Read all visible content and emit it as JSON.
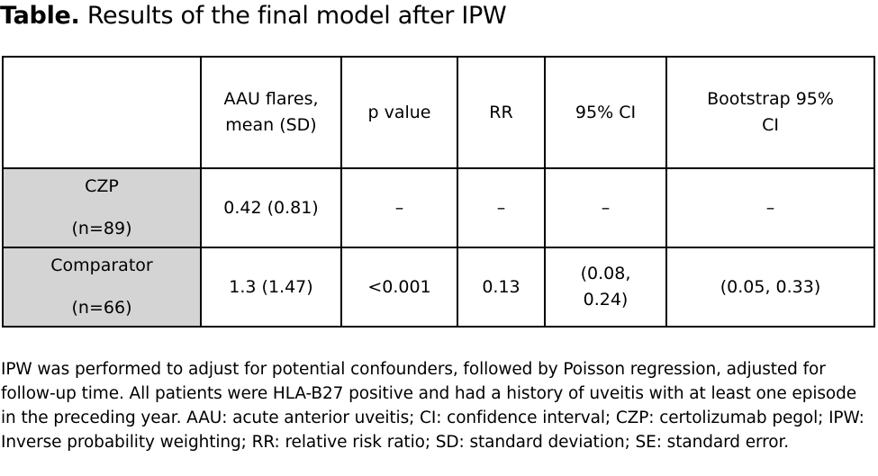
{
  "title": {
    "lead": "Table.",
    "text": "Results of the final model after IPW"
  },
  "table": {
    "headers": {
      "aau_bold": "AAU flares",
      "aau_rest": ",",
      "aau_sub": "mean (SD)",
      "p_value": "p value",
      "rr": "RR",
      "ci": "95% CI",
      "bootstrap_line1": "Bootstrap 95%",
      "bootstrap_line2": "CI"
    },
    "rows": [
      {
        "group": "CZP",
        "n": "(n=89)",
        "aau_flares": "0.42 (0.81)",
        "p_value": "–",
        "rr": "–",
        "ci": "–",
        "bootstrap_ci": "–"
      },
      {
        "group": "Comparator",
        "n": "(n=66)",
        "aau_flares": "1.3 (1.47)",
        "p_value": "<0.001",
        "rr": "0.13",
        "ci_line1": "(0.08,",
        "ci_line2": "0.24)",
        "bootstrap_ci": "(0.05, 0.33)"
      }
    ]
  },
  "footnote": "IPW was performed to adjust for potential confounders, followed by Poisson regression, adjusted for follow-up time. All patients were HLA-B27 positive and had a history of uveitis with at least one episode in the preceding year. AAU: acute anterior uveitis; CI: confidence interval; CZP: certolizumab pegol; IPW: Inverse probability weighting; RR: relative risk ratio; SD: standard deviation; SE: standard error.",
  "colors": {
    "row_header_bg": "#d4d4d4",
    "row_separator": "#9b9b9b",
    "text": "#000000"
  }
}
